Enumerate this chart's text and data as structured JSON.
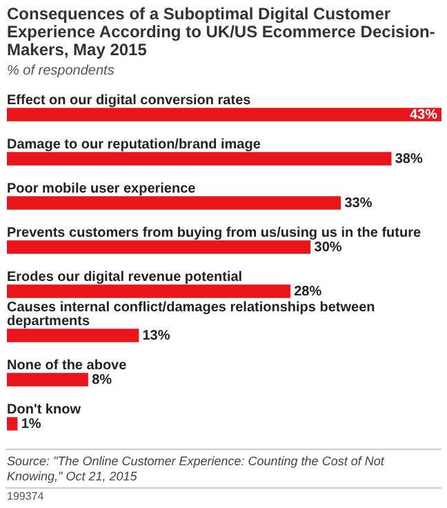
{
  "chart_data": {
    "type": "bar",
    "orientation": "horizontal",
    "title": "Consequences of a Suboptimal Digital Customer Experience According to UK/US Ecommerce Decision-Makers, May 2015",
    "subtitle": "% of respondents",
    "categories": [
      "Effect on our digital conversion rates",
      "Damage to our reputation/brand image",
      "Poor mobile user experience",
      "Prevents customers from buying from us/using us in the future",
      "Erodes our digital revenue potential",
      "Causes internal conflict/damages relationships between departments",
      "None of the above",
      "Don't know"
    ],
    "values": [
      43,
      38,
      33,
      30,
      28,
      13,
      8,
      1
    ],
    "value_labels": [
      "43%",
      "38%",
      "33%",
      "30%",
      "28%",
      "13%",
      "8%",
      "1%"
    ],
    "color": "#e8161b",
    "annotations": [
      "Source: \"The Online Customer Experience: Counting the Cost of Not Knowing,\" Oct 21, 2015",
      "199374"
    ]
  }
}
